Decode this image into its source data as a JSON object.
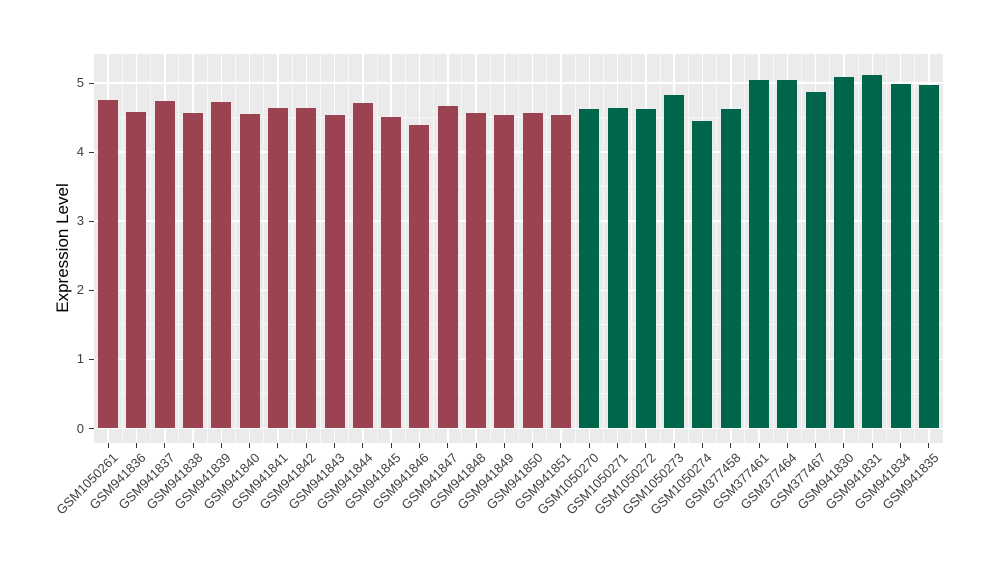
{
  "chart_data": {
    "type": "bar",
    "title": "",
    "xlabel": "",
    "ylabel": "Expression Level",
    "ylim": [
      0,
      5.42
    ],
    "yticks": [
      0,
      1,
      2,
      3,
      4,
      5
    ],
    "grid": true,
    "legend": false,
    "categories": [
      "GSM1050261",
      "GSM941836",
      "GSM941837",
      "GSM941838",
      "GSM941839",
      "GSM941840",
      "GSM941841",
      "GSM941842",
      "GSM941843",
      "GSM941844",
      "GSM941845",
      "GSM941846",
      "GSM941847",
      "GSM941848",
      "GSM941849",
      "GSM941850",
      "GSM941851",
      "GSM1050270",
      "GSM1050271",
      "GSM1050272",
      "GSM1050273",
      "GSM1050274",
      "GSM377458",
      "GSM377461",
      "GSM377464",
      "GSM377467",
      "GSM941830",
      "GSM941831",
      "GSM941834",
      "GSM941835"
    ],
    "values": [
      4.75,
      4.58,
      4.74,
      4.57,
      4.72,
      4.55,
      4.64,
      4.64,
      4.53,
      4.71,
      4.51,
      4.39,
      4.66,
      4.56,
      4.54,
      4.57,
      4.54,
      4.62,
      4.64,
      4.62,
      4.82,
      4.45,
      4.62,
      5.05,
      5.04,
      4.87,
      5.08,
      5.12,
      4.99,
      4.97
    ],
    "bar_groups": [
      0,
      0,
      0,
      0,
      0,
      0,
      0,
      0,
      0,
      0,
      0,
      0,
      0,
      0,
      0,
      0,
      0,
      1,
      1,
      1,
      1,
      1,
      1,
      1,
      1,
      1,
      1,
      1,
      1,
      1
    ],
    "group_colors": [
      "#9B4350",
      "#00664B"
    ],
    "panel_bg": "#EBEBEB",
    "grid_color": "#FFFFFF",
    "axis_text_color": "#404040",
    "tick_color": "#333333"
  }
}
